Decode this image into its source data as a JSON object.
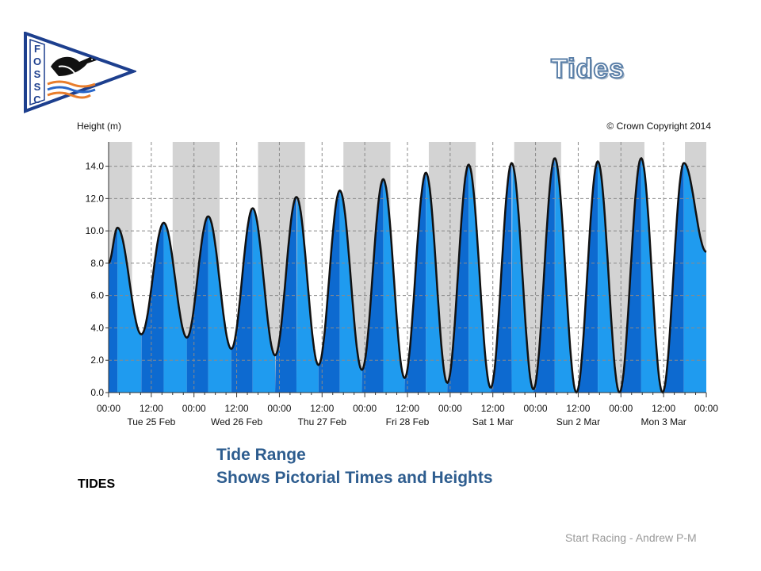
{
  "slide": {
    "title": "Tides",
    "logo_letters": [
      "F",
      "O",
      "S",
      "S",
      "C"
    ],
    "caption_title": "Tide Range",
    "caption_subtitle": "Shows Pictorial Times and Heights",
    "side_label": "TIDES",
    "footer": "Start Racing - Andrew P-M"
  },
  "colors": {
    "title_outline": "#5a7fa8",
    "caption": "#2e5d8f",
    "night_band": "#d3d3d3",
    "fill_light": "#1f9bef",
    "fill_dark": "#0d6ad0",
    "curve": "#111111",
    "logo_border": "#1d3f8e",
    "logo_wave_orange": "#e87d2c",
    "logo_wave_blue": "#2a67c9"
  },
  "chart_data": {
    "type": "area",
    "ylabel": "Height (m)",
    "copyright": "© Crown Copyright 2014",
    "ylim": [
      0,
      15.5
    ],
    "yticks": [
      "0.0",
      "2.0",
      "4.0",
      "6.0",
      "8.0",
      "10.0",
      "12.0",
      "14.0"
    ],
    "xlim_hours": [
      0,
      168
    ],
    "xtick_labels": [
      "00:00",
      "12:00",
      "00:00",
      "12:00",
      "00:00",
      "12:00",
      "00:00",
      "12:00",
      "00:00",
      "12:00",
      "00:00",
      "12:00",
      "00:00",
      "12:00",
      "00:00"
    ],
    "day_labels": [
      "Tue 25 Feb",
      "Wed 26 Feb",
      "Thu 27 Feb",
      "Fri 28 Feb",
      "Sat 1 Mar",
      "Sun 2 Mar",
      "Mon 3 Mar"
    ],
    "grid": true,
    "night_bands_hours": [
      [
        0,
        6.6
      ],
      [
        18,
        31.2
      ],
      [
        42,
        55.2
      ],
      [
        66,
        79.2
      ],
      [
        90,
        103.2
      ],
      [
        114,
        127.2
      ],
      [
        138,
        150.6
      ],
      [
        162,
        168
      ]
    ],
    "tide_extremes": [
      {
        "t": 0,
        "h": 8.0
      },
      {
        "t": 2.5,
        "h": 10.2
      },
      {
        "t": 9.2,
        "h": 3.6
      },
      {
        "t": 15.5,
        "h": 10.5
      },
      {
        "t": 22.0,
        "h": 3.4
      },
      {
        "t": 28.0,
        "h": 10.9
      },
      {
        "t": 34.5,
        "h": 2.7
      },
      {
        "t": 40.5,
        "h": 11.4
      },
      {
        "t": 46.8,
        "h": 2.3
      },
      {
        "t": 52.8,
        "h": 12.1
      },
      {
        "t": 59.0,
        "h": 1.7
      },
      {
        "t": 65.0,
        "h": 12.5
      },
      {
        "t": 71.2,
        "h": 1.4
      },
      {
        "t": 77.2,
        "h": 13.2
      },
      {
        "t": 83.2,
        "h": 0.9
      },
      {
        "t": 89.2,
        "h": 13.6
      },
      {
        "t": 95.2,
        "h": 0.6
      },
      {
        "t": 101.2,
        "h": 14.1
      },
      {
        "t": 107.4,
        "h": 0.3
      },
      {
        "t": 113.3,
        "h": 14.2
      },
      {
        "t": 119.4,
        "h": 0.2
      },
      {
        "t": 125.4,
        "h": 14.5
      },
      {
        "t": 131.5,
        "h": 0.0
      },
      {
        "t": 137.5,
        "h": 14.3
      },
      {
        "t": 143.6,
        "h": 0.0
      },
      {
        "t": 149.7,
        "h": 14.5
      },
      {
        "t": 155.7,
        "h": 0.0
      },
      {
        "t": 161.7,
        "h": 14.2
      },
      {
        "t": 168,
        "h": 8.7
      }
    ]
  }
}
